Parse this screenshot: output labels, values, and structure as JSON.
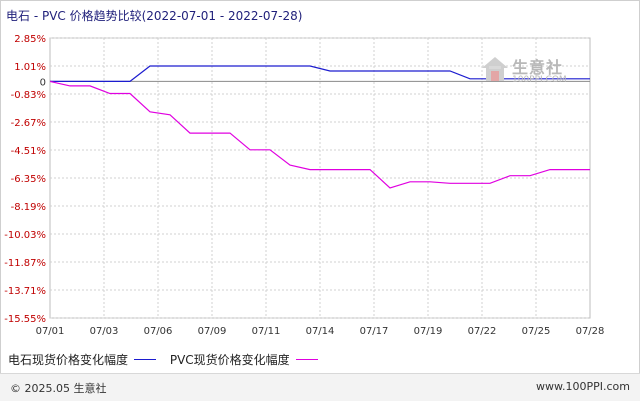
{
  "header": {
    "title": "电石 - PVC 价格趋势比较(2022-07-01 - 2022-07-28)"
  },
  "watermark": {
    "name": "生意社",
    "url": "100PPI.COM"
  },
  "footer": {
    "copyright": "© 2025.05 生意社",
    "site": "www.100PPI.com"
  },
  "colors": {
    "series_1": "#1c1ccf",
    "series_2": "#e000e0",
    "title": "#1f1f7a",
    "grid": "#d0d0d0",
    "tick_label": "#c00000"
  },
  "chart_data": {
    "type": "line",
    "title": "电石 - PVC 价格趋势比较(2022-07-01 - 2022-07-28)",
    "xlabel": "",
    "ylabel": "",
    "x_ticks": [
      "07/01",
      "07/03",
      "07/06",
      "07/09",
      "07/11",
      "07/14",
      "07/17",
      "07/19",
      "07/22",
      "07/25",
      "07/28"
    ],
    "y_ticks": [
      "2.85%",
      "1.01%",
      "0",
      "-0.83%",
      "-2.67%",
      "-4.51%",
      "-6.35%",
      "-8.19%",
      "-10.03%",
      "-11.87%",
      "-13.71%",
      "-15.55%"
    ],
    "y_tick_values": [
      2.85,
      1.01,
      0,
      -0.83,
      -2.67,
      -4.51,
      -6.35,
      -8.19,
      -10.03,
      -11.87,
      -13.71,
      -15.55
    ],
    "ylim": [
      -15.55,
      2.85
    ],
    "x_domain": [
      0,
      27
    ],
    "grid": true,
    "legend_position": "bottom-left",
    "series": [
      {
        "name": "电石现货价格变化幅度",
        "color": "#1c1ccf",
        "x": [
          0,
          1,
          2,
          3,
          4,
          5,
          6,
          7,
          8,
          9,
          10,
          11,
          12,
          13,
          14,
          15,
          16,
          17,
          18,
          19,
          20,
          21,
          22,
          23,
          24,
          25,
          26,
          27
        ],
        "y": [
          0,
          0,
          0,
          0,
          0,
          1.01,
          1.01,
          1.01,
          1.01,
          1.01,
          1.01,
          1.01,
          1.01,
          1.01,
          0.68,
          0.68,
          0.68,
          0.68,
          0.68,
          0.68,
          0.68,
          0.17,
          0.17,
          0.17,
          0.17,
          0.17,
          0.17,
          0.17
        ]
      },
      {
        "name": "PVC现货价格变化幅度",
        "color": "#e000e0",
        "x": [
          0,
          1,
          2,
          3,
          4,
          5,
          6,
          7,
          8,
          9,
          10,
          11,
          12,
          13,
          14,
          15,
          16,
          17,
          18,
          19,
          20,
          21,
          22,
          23,
          24,
          25,
          26,
          27
        ],
        "y": [
          0,
          -0.3,
          -0.3,
          -0.8,
          -0.8,
          -2.0,
          -2.2,
          -3.4,
          -3.4,
          -3.4,
          -4.5,
          -4.5,
          -5.5,
          -5.8,
          -5.8,
          -5.8,
          -5.8,
          -7.0,
          -6.6,
          -6.6,
          -6.7,
          -6.7,
          -6.7,
          -6.2,
          -6.2,
          -5.8,
          -5.8,
          -5.8
        ]
      }
    ]
  }
}
